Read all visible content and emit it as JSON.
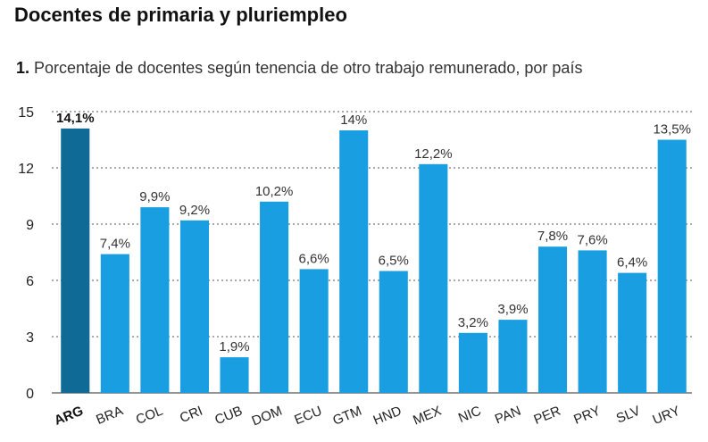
{
  "header": {
    "title": "Docentes de primaria y pluriempleo",
    "subtitle_number": "1.",
    "subtitle_text": "Porcentaje de docentes según tenencia de otro trabajo remunerado, por país"
  },
  "colors": {
    "bar": "#1a9ee2",
    "highlight_bar": "#0f6a96",
    "grid": "#555555"
  },
  "chart_data": {
    "type": "bar",
    "title": "Docentes de primaria y pluriempleo",
    "subtitle": "1. Porcentaje de docentes según tenencia de otro trabajo remunerado, por país",
    "categories": [
      "ARG",
      "BRA",
      "COL",
      "CRI",
      "CUB",
      "DOM",
      "ECU",
      "GTM",
      "HND",
      "MEX",
      "NIC",
      "PAN",
      "PER",
      "PRY",
      "SLV",
      "URY"
    ],
    "values": [
      14.1,
      7.4,
      9.9,
      9.2,
      1.9,
      10.2,
      6.6,
      14,
      6.5,
      12.2,
      3.2,
      3.9,
      7.8,
      7.6,
      6.4,
      13.5
    ],
    "value_labels": [
      "14,1%",
      "7,4%",
      "9,9%",
      "9,2%",
      "1,9%",
      "10,2%",
      "6,6%",
      "14%",
      "6,5%",
      "12,2%",
      "3,2%",
      "3,9%",
      "7,8%",
      "7,6%",
      "6,4%",
      "13,5%"
    ],
    "highlight": "ARG",
    "yticks": [
      0,
      3,
      6,
      9,
      12,
      15
    ],
    "ytick_labels": [
      "0",
      "3",
      "6",
      "9",
      "12",
      "15"
    ],
    "ylim": [
      0,
      15
    ],
    "xlabel": "",
    "ylabel": "",
    "grid": true,
    "grid_style": "dotted"
  }
}
